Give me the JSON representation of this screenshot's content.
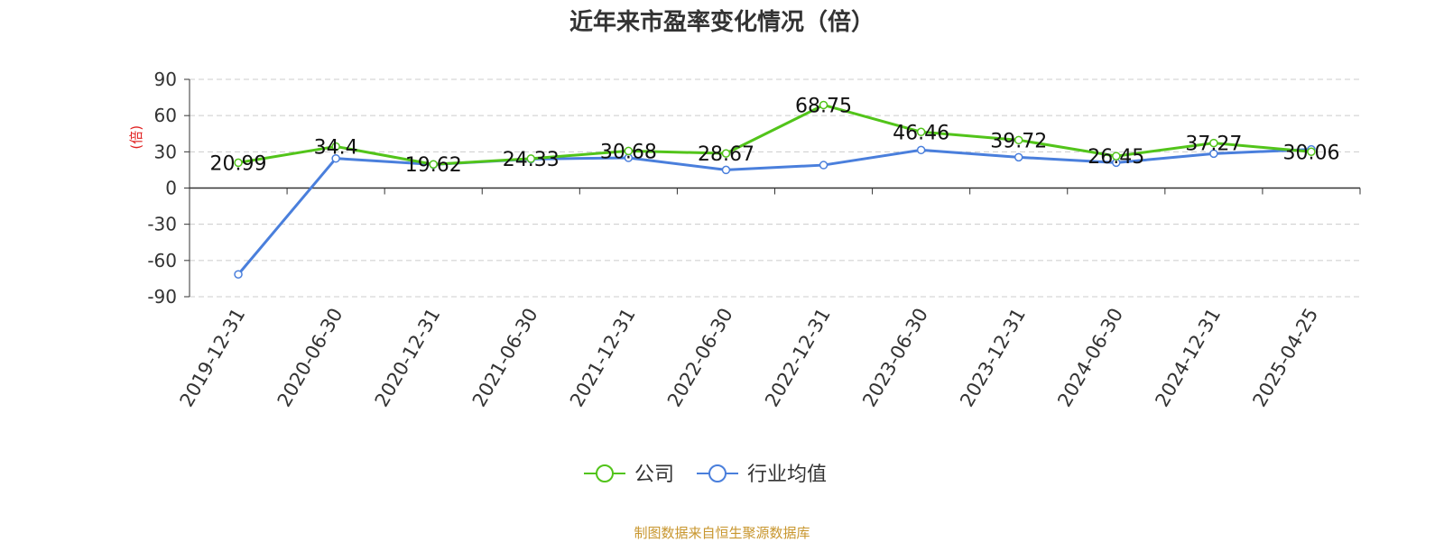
{
  "page": {
    "source_note": "制图数据来自恒生聚源数据库"
  },
  "chart_data": {
    "type": "line",
    "title": "近年来市盈率变化情况（倍）",
    "ylabel": "(倍)",
    "ylim": [
      -90,
      90
    ],
    "yticks": [
      90,
      60,
      30,
      0,
      -30,
      -60,
      -90
    ],
    "grid": true,
    "legend_position": "bottom-center",
    "categories": [
      "2019-12-31",
      "2020-06-30",
      "2020-12-31",
      "2021-06-30",
      "2021-12-31",
      "2022-06-30",
      "2022-12-31",
      "2023-06-30",
      "2023-12-31",
      "2024-06-30",
      "2024-12-31",
      "2025-04-25"
    ],
    "series": [
      {
        "name": "公司",
        "color": "#52c41a",
        "values": [
          20.99,
          34.4,
          19.62,
          24.33,
          30.68,
          28.67,
          68.75,
          46.46,
          39.72,
          26.45,
          37.27,
          30.06
        ],
        "labels": [
          "20.99",
          "34.4",
          "19.62",
          "24.33",
          "30.68",
          "28.67",
          "68.75",
          "46.46",
          "39.72",
          "26.45",
          "37.27",
          "30.06"
        ]
      },
      {
        "name": "行业均值",
        "color": "#4a7fdc",
        "values": [
          -71.5,
          24.5,
          19.5,
          24.0,
          25.0,
          15.0,
          19.0,
          31.5,
          25.5,
          21.0,
          28.5,
          32.0
        ]
      }
    ]
  }
}
